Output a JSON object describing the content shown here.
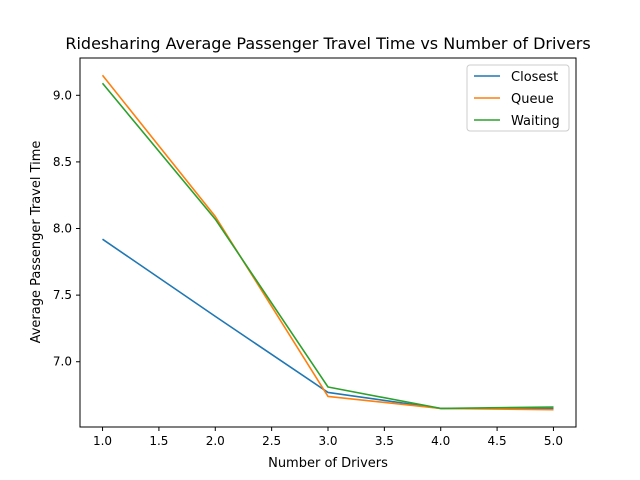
{
  "chart_data": {
    "type": "line",
    "title": "Ridesharing Average Passenger Travel Time vs Number of Drivers",
    "xlabel": "Number of Drivers",
    "ylabel": "Average Passenger Travel Time",
    "x": [
      1.0,
      2.0,
      3.0,
      4.0,
      5.0
    ],
    "xlim": [
      0.8,
      5.2
    ],
    "ylim": [
      6.51,
      9.28
    ],
    "xticks": [
      "1.0",
      "1.5",
      "2.0",
      "2.5",
      "3.0",
      "3.5",
      "4.0",
      "4.5",
      "5.0"
    ],
    "yticks": [
      "7.0",
      "7.5",
      "8.0",
      "8.5",
      "9.0"
    ],
    "grid": false,
    "legend_position": "top-right",
    "series": [
      {
        "name": "Closest",
        "color": "#1f77b4",
        "values": [
          7.92,
          7.34,
          6.77,
          6.65,
          6.65
        ]
      },
      {
        "name": "Queue",
        "color": "#ff7f0e",
        "values": [
          9.15,
          8.09,
          6.74,
          6.65,
          6.64
        ]
      },
      {
        "name": "Waiting",
        "color": "#2ca02c",
        "values": [
          9.09,
          8.07,
          6.81,
          6.65,
          6.66
        ]
      }
    ]
  }
}
